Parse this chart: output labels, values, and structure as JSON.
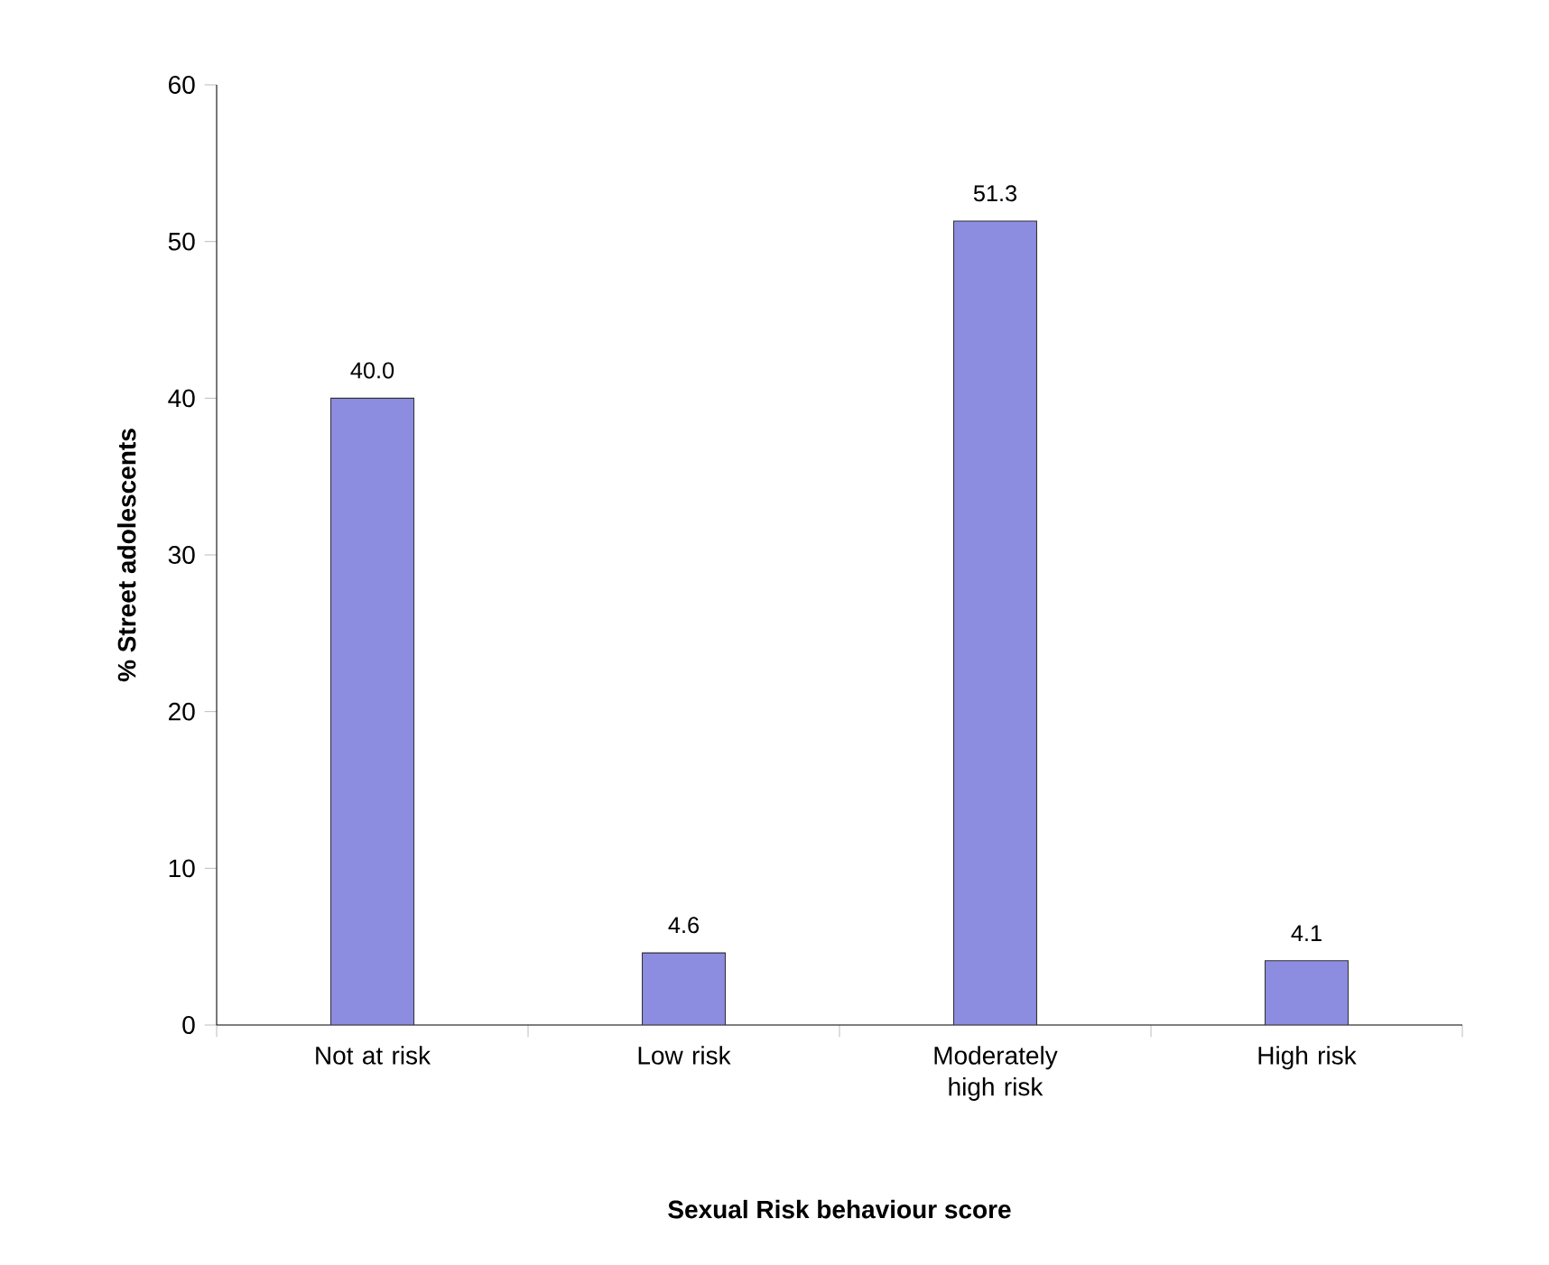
{
  "chart_data": {
    "type": "bar",
    "xlabel": "Sexual Risk behaviour score",
    "ylabel": "% Street adolescents",
    "categories": [
      "Not at risk",
      "Low risk",
      "Moderately high risk",
      "High risk"
    ],
    "values": [
      40.0,
      4.6,
      51.3,
      4.1
    ],
    "value_labels": [
      "40.0",
      "4.6",
      "51.3",
      "4.1"
    ],
    "color": "#8c8ce0",
    "ylim": [
      0,
      60
    ],
    "yticks": [
      0,
      10,
      20,
      30,
      40,
      50,
      60
    ],
    "grid": false
  }
}
